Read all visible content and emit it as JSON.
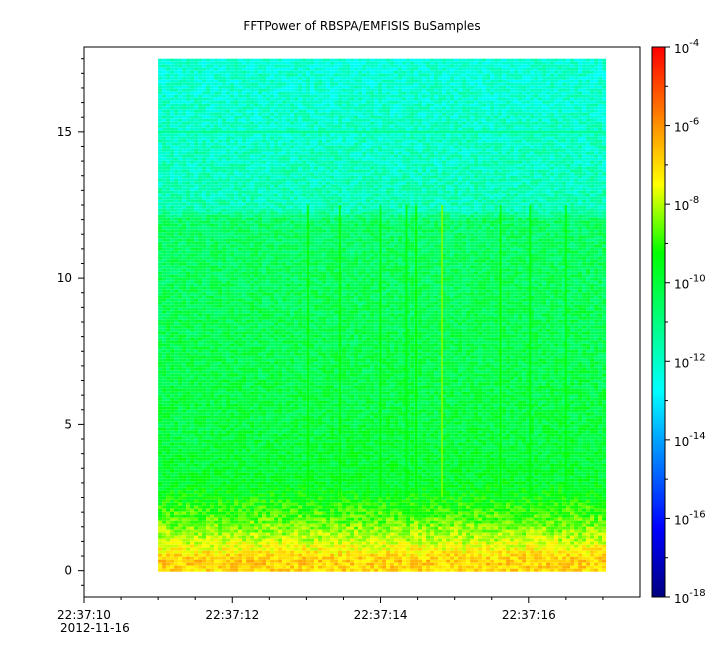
{
  "chart_data": {
    "type": "heatmap",
    "title": "FFTPower of RBSPA/EMFISIS  BuSamples",
    "xlabel": "",
    "ylabel": "",
    "x_start": "22:37:10",
    "x_date": "2012-11-16",
    "x_ticks": [
      "22:37:10",
      "22:37:12",
      "22:37:14",
      "22:37:16"
    ],
    "x_range_seconds": [
      10,
      17.5
    ],
    "data_time_range_seconds": [
      11,
      17
    ],
    "y_ticks": [
      "0",
      "5",
      "10",
      "15"
    ],
    "ylim": [
      -0.9,
      17.9
    ],
    "data_y_range": [
      0,
      17.5
    ],
    "z_scale": "log",
    "z_range": [
      1e-18,
      0.0001
    ],
    "colorbar_ticks": [
      {
        "base": "10",
        "exp": "-18"
      },
      {
        "base": "10",
        "exp": "-16"
      },
      {
        "base": "10",
        "exp": "-14"
      },
      {
        "base": "10",
        "exp": "-12"
      },
      {
        "base": "10",
        "exp": "-10"
      },
      {
        "base": "10",
        "exp": "-8"
      },
      {
        "base": "10",
        "exp": "-6"
      },
      {
        "base": "10",
        "exp": "-4"
      }
    ],
    "colormap": [
      "#00007f",
      "#0000ff",
      "#007fff",
      "#00ffff",
      "#00ff7f",
      "#00ff00",
      "#ffff00",
      "#ff7f00",
      "#ff0000"
    ],
    "power_profile": [
      {
        "y": 0.0,
        "log_power": -7.0
      },
      {
        "y": 0.3,
        "log_power": -6.8
      },
      {
        "y": 0.6,
        "log_power": -7.2
      },
      {
        "y": 1.0,
        "log_power": -7.9
      },
      {
        "y": 1.5,
        "log_power": -8.4
      },
      {
        "y": 2.0,
        "log_power": -8.9
      },
      {
        "y": 2.5,
        "log_power": -9.4
      },
      {
        "y": 3.0,
        "log_power": -9.8
      },
      {
        "y": 5.0,
        "log_power": -10.1
      },
      {
        "y": 8.0,
        "log_power": -10.3
      },
      {
        "y": 12.0,
        "log_power": -10.6
      },
      {
        "y": 12.3,
        "log_power": -11.7
      },
      {
        "y": 15.0,
        "log_power": -12.0
      },
      {
        "y": 17.5,
        "log_power": -12.2
      }
    ],
    "line_features": [
      {
        "y": 15.0,
        "log_power": -11.2
      }
    ],
    "bursts_seconds": [
      {
        "t": 13.02,
        "log_power": -9.3
      },
      {
        "t": 13.45,
        "log_power": -9.2
      },
      {
        "t": 14.0,
        "log_power": -9.4
      },
      {
        "t": 14.35,
        "log_power": -9.3
      },
      {
        "t": 14.48,
        "log_power": -9.2
      },
      {
        "t": 14.83,
        "log_power": -8.4
      },
      {
        "t": 15.62,
        "log_power": -9.2
      },
      {
        "t": 16.02,
        "log_power": -9.3
      },
      {
        "t": 16.5,
        "log_power": -9.4
      }
    ]
  }
}
